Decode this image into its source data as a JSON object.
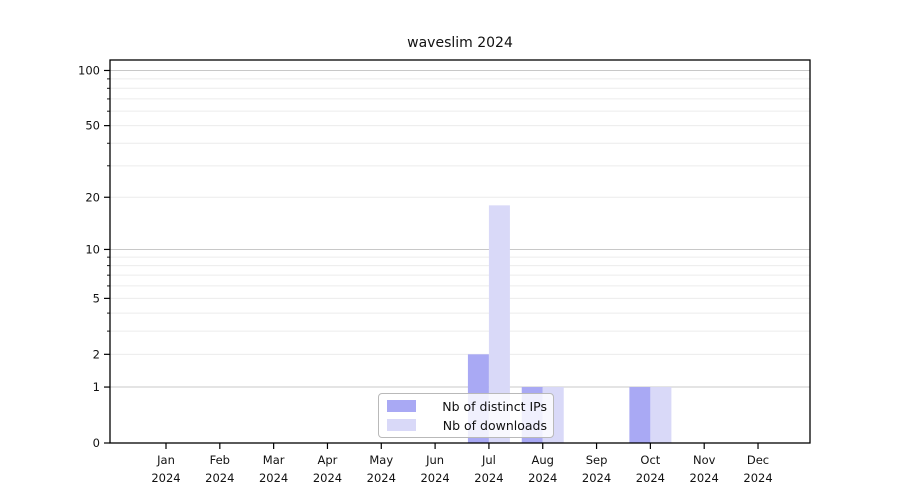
{
  "chart_data": {
    "type": "bar",
    "title": "waveslim 2024",
    "xlabel": "",
    "ylabel": "",
    "categories": [
      "Jan",
      "Feb",
      "Mar",
      "Apr",
      "May",
      "Jun",
      "Jul",
      "Aug",
      "Sep",
      "Oct",
      "Nov",
      "Dec"
    ],
    "category_year": "2024",
    "series": [
      {
        "name": "Nb of distinct IPs",
        "color": "#a9a9f4",
        "values": [
          0,
          0,
          0,
          0,
          0,
          0,
          2,
          1,
          0,
          1,
          0,
          0
        ]
      },
      {
        "name": "Nb of downloads",
        "color": "#d9d9f8",
        "values": [
          0,
          0,
          0,
          0,
          0,
          0,
          18,
          1,
          0,
          1,
          0,
          0
        ]
      }
    ],
    "yticks": [
      0,
      1,
      2,
      5,
      10,
      20,
      50,
      100
    ],
    "ylim": [
      0,
      114
    ],
    "yscale": "log1p",
    "grid": true,
    "grid_major_values": [
      1,
      10,
      100
    ],
    "grid_minor_values": [
      2,
      3,
      4,
      5,
      6,
      7,
      8,
      9,
      20,
      30,
      40,
      50,
      60,
      70,
      80,
      90
    ],
    "grid_major_color": "#c8c8c8",
    "grid_minor_color": "#ececec",
    "legend_position": "inside-bottom-center",
    "legend_items": [
      "Nb of distinct IPs",
      "Nb of downloads"
    ]
  }
}
